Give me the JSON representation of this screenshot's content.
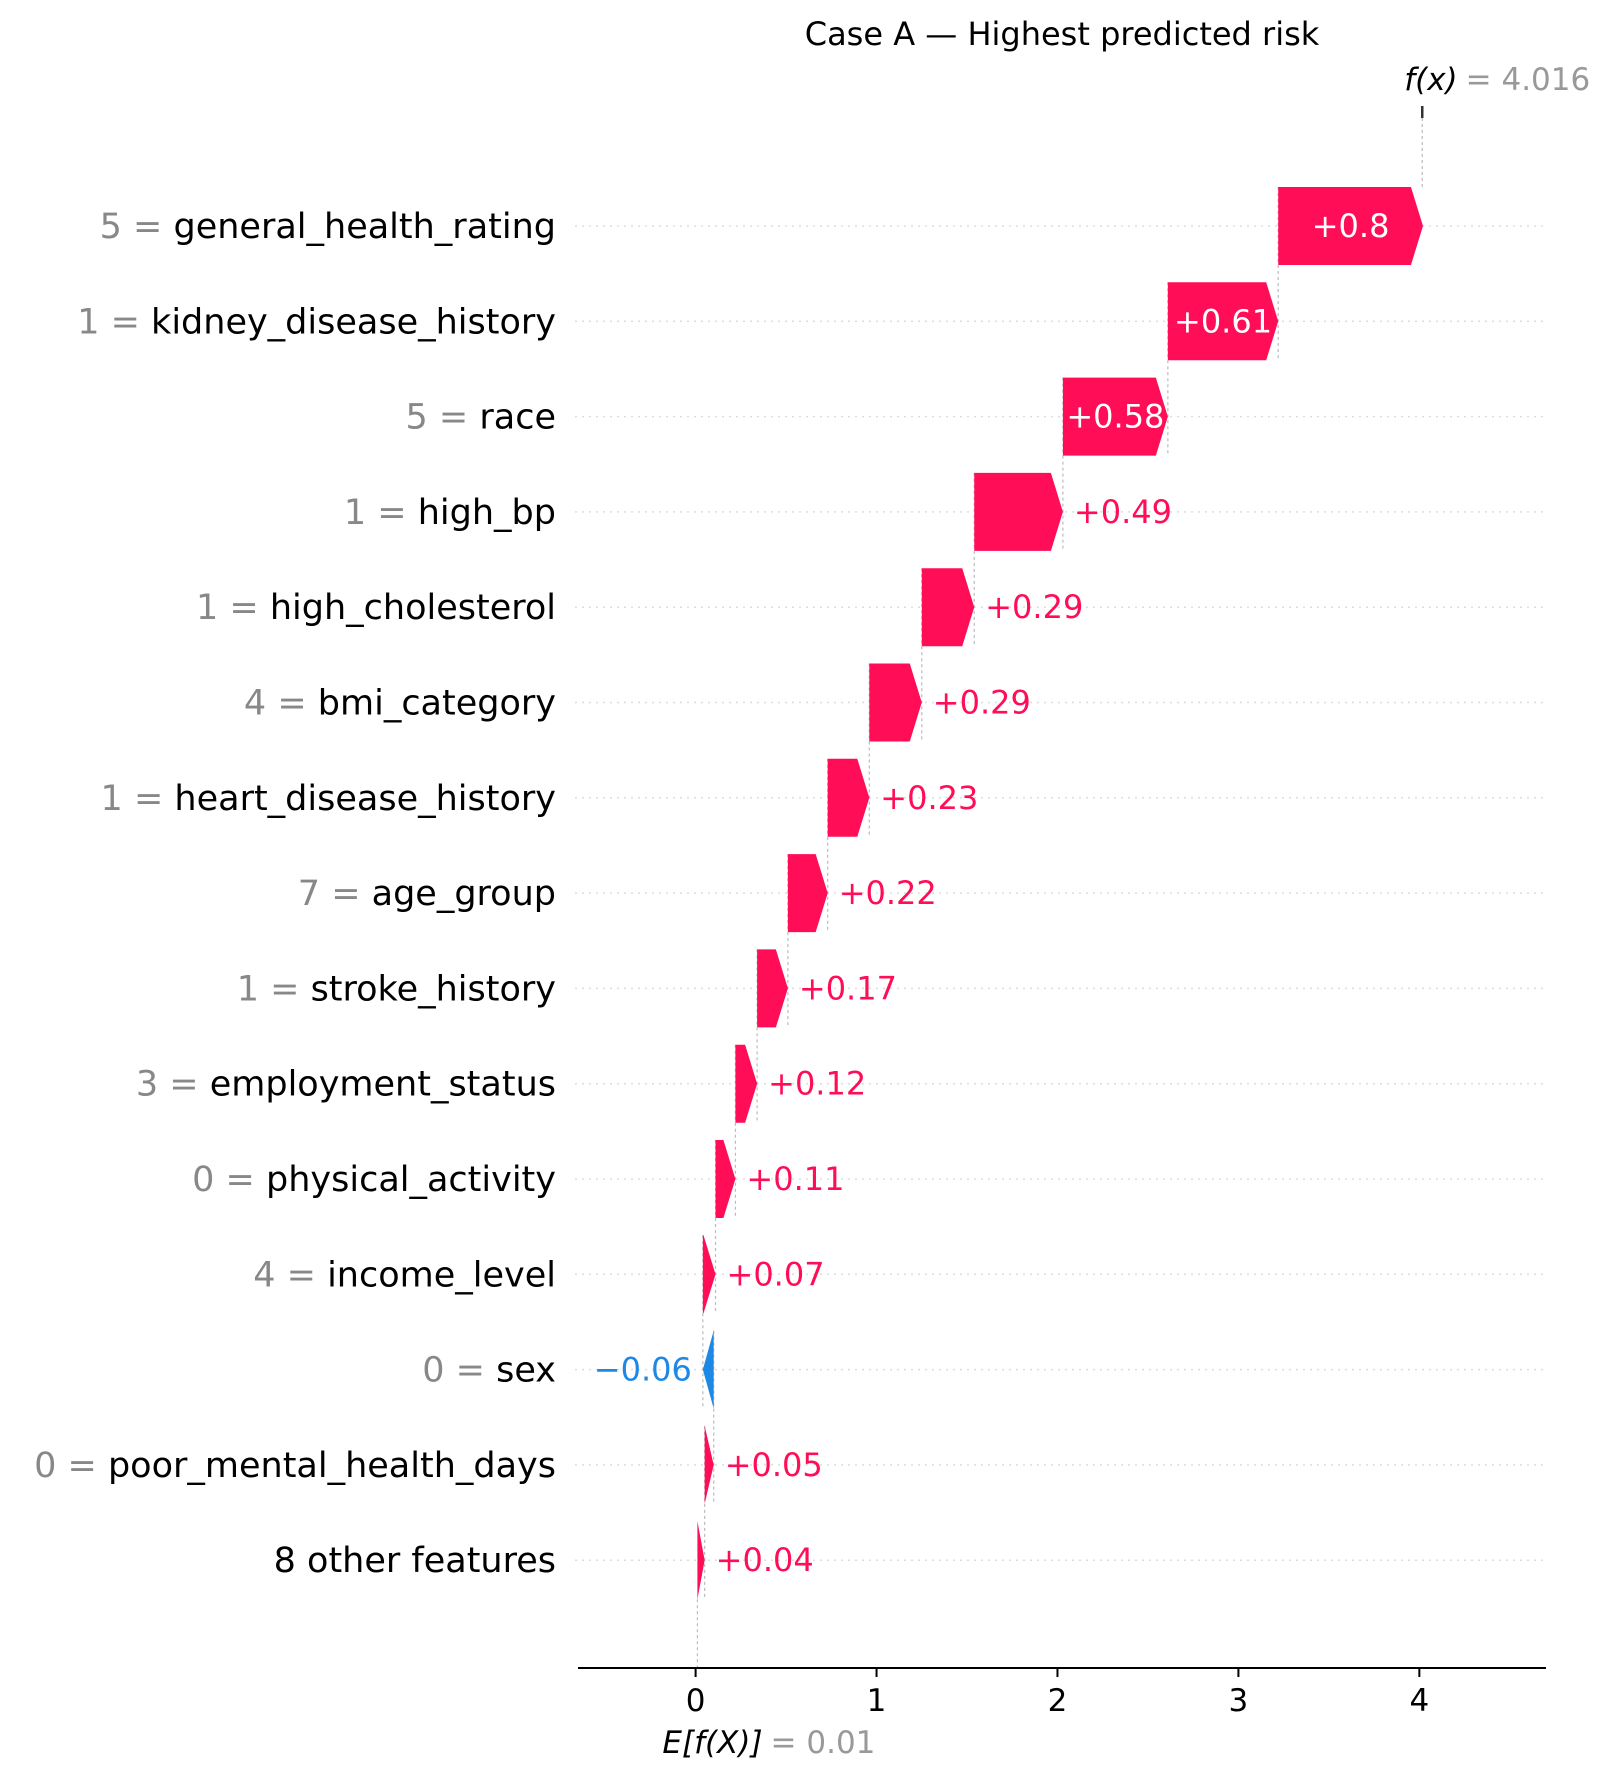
{
  "chart_data": {
    "type": "waterfall",
    "title": "Case A — Highest predicted risk",
    "base_value": 0.01,
    "base_label": "E[f(X)]",
    "base_value_label": "= 0.01",
    "output_value": 4.016,
    "output_label": "f(x)",
    "output_value_label": "= 4.016",
    "xlim": [
      -0.65,
      4.7
    ],
    "xticks": [
      0,
      1,
      2,
      3,
      4
    ],
    "xtick_labels": [
      "0",
      "1",
      "2",
      "3",
      "4"
    ],
    "colors": {
      "positive": "#ff0d57",
      "negative": "#1e88e5"
    },
    "features": [
      {
        "value": "5",
        "name": "general_health_rating",
        "contribution": 0.8,
        "label": "+0.8"
      },
      {
        "value": "1",
        "name": "kidney_disease_history",
        "contribution": 0.61,
        "label": "+0.61"
      },
      {
        "value": "5",
        "name": "race",
        "contribution": 0.58,
        "label": "+0.58"
      },
      {
        "value": "1",
        "name": "high_bp",
        "contribution": 0.49,
        "label": "+0.49"
      },
      {
        "value": "1",
        "name": "high_cholesterol",
        "contribution": 0.29,
        "label": "+0.29"
      },
      {
        "value": "4",
        "name": "bmi_category",
        "contribution": 0.29,
        "label": "+0.29"
      },
      {
        "value": "1",
        "name": "heart_disease_history",
        "contribution": 0.23,
        "label": "+0.23"
      },
      {
        "value": "7",
        "name": "age_group",
        "contribution": 0.22,
        "label": "+0.22"
      },
      {
        "value": "1",
        "name": "stroke_history",
        "contribution": 0.17,
        "label": "+0.17"
      },
      {
        "value": "3",
        "name": "employment_status",
        "contribution": 0.12,
        "label": "+0.12"
      },
      {
        "value": "0",
        "name": "physical_activity",
        "contribution": 0.11,
        "label": "+0.11"
      },
      {
        "value": "4",
        "name": "income_level",
        "contribution": 0.07,
        "label": "+0.07"
      },
      {
        "value": "0",
        "name": "sex",
        "contribution": -0.06,
        "label": "−0.06"
      },
      {
        "value": "0",
        "name": "poor_mental_health_days",
        "contribution": 0.05,
        "label": "+0.05"
      },
      {
        "value": "",
        "name": "8 other features",
        "contribution": 0.04,
        "label": "+0.04"
      }
    ]
  }
}
